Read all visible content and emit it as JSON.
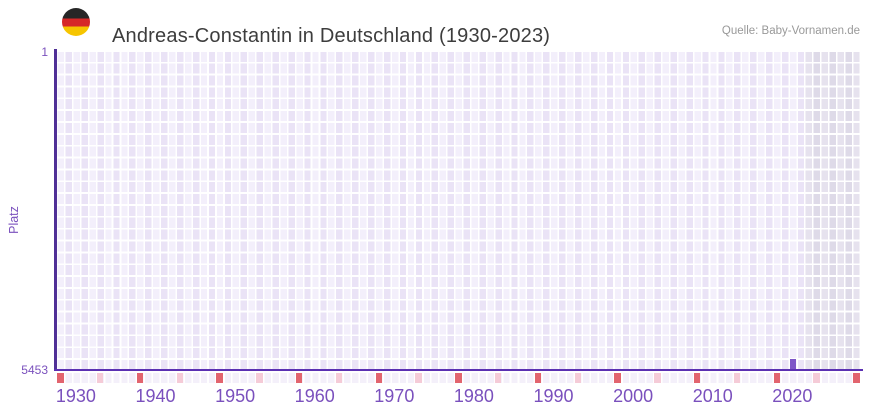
{
  "header": {
    "flag_icon": "german-flag",
    "title": "Andreas-Constantin in Deutschland (1930-2023)",
    "source": "Quelle: Baby-Vornamen.de"
  },
  "y_axis": {
    "label": "Platz",
    "top_tick": "1",
    "bottom_tick": "5453"
  },
  "x_axis": {
    "tick_labels": [
      "1930",
      "1940",
      "1950",
      "1960",
      "1970",
      "1980",
      "1990",
      "2000",
      "2010",
      "2020"
    ]
  },
  "chart_data": {
    "type": "bar",
    "title": "Andreas-Constantin in Deutschland (1930-2023)",
    "ylabel": "Platz",
    "y_scale": {
      "best": 1,
      "worst": 5453,
      "inverted": true
    },
    "x_range": [
      1928,
      2028
    ],
    "x_tick_years": [
      1930,
      1940,
      1950,
      1960,
      1970,
      1980,
      1990,
      2000,
      2010,
      2020
    ],
    "series": [
      {
        "name": "Platz",
        "points": [
          {
            "year": 2020,
            "platz": 5453
          }
        ]
      }
    ],
    "no_data_region": {
      "from_year": 2022,
      "to_year": 2028
    },
    "bottom_marker_strip": {
      "red_years": [
        1928,
        1938,
        1948,
        1958,
        1968,
        1978,
        1988,
        1998,
        2008,
        2018,
        2028
      ],
      "pink_years": [
        1933,
        1943,
        1953,
        1963,
        1973,
        1983,
        1993,
        2003,
        2013,
        2023
      ]
    },
    "grid": true,
    "legend": "none"
  },
  "colors": {
    "accent-purple": "#7d55c7",
    "axis-purple": "#5b30b2",
    "axis-dark": "#4f2f96",
    "tick-purple": "#7a50bd",
    "grid-light": "#f3effb",
    "grid-dark": "#eae3f6",
    "gray-light": "#e6e2ee",
    "gray-dark": "#dedae8",
    "strip-base": "#f4f0fa",
    "strip-red": "#e2646e",
    "strip-pink": "#f5cbd7",
    "title-color": "#3d3d3d",
    "source-color": "#999999",
    "flag-black": "#262626",
    "flag-red": "#d62828",
    "flag-gold": "#f6c500"
  }
}
